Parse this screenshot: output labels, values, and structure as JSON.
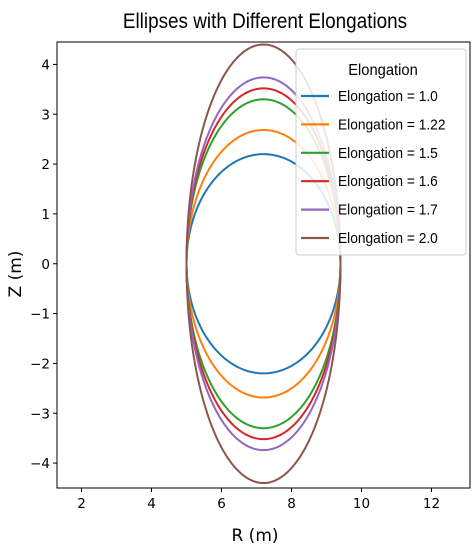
{
  "chart_data": {
    "type": "line",
    "title": "Ellipses with Different Elongations",
    "xlabel": "R (m)",
    "ylabel": "Z (m)",
    "xlim": [
      1.3,
      13.1
    ],
    "ylim": [
      -4.5,
      4.45
    ],
    "xticks": [
      2,
      4,
      6,
      8,
      10,
      12
    ],
    "yticks": [
      -4,
      -3,
      -2,
      -1,
      0,
      1,
      2,
      3,
      4
    ],
    "center_r": 7.2,
    "minor_radius": 2.2,
    "grid": false,
    "legend": {
      "title": "Elongation",
      "placement": "top-right"
    },
    "series": [
      {
        "name": "Elongation = 1.0",
        "elongation": 1.0,
        "color": "#1f77b4"
      },
      {
        "name": "Elongation = 1.22",
        "elongation": 1.22,
        "color": "#ff7f0e"
      },
      {
        "name": "Elongation = 1.5",
        "elongation": 1.5,
        "color": "#2ca02c"
      },
      {
        "name": "Elongation = 1.6",
        "elongation": 1.6,
        "color": "#d62728"
      },
      {
        "name": "Elongation = 1.7",
        "elongation": 1.7,
        "color": "#9467bd"
      },
      {
        "name": "Elongation = 2.0",
        "elongation": 2.0,
        "color": "#8c564b"
      }
    ]
  }
}
